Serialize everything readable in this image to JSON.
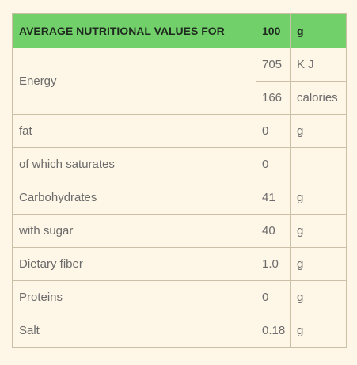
{
  "header": {
    "title": "AVERAGE NUTRITIONAL VALUES FOR",
    "amount": "100",
    "unit": "g"
  },
  "rows": [
    {
      "label": "Energy",
      "values": [
        {
          "amount": "705",
          "unit": "K J"
        },
        {
          "amount": "166",
          "unit": "calories"
        }
      ]
    },
    {
      "label": "fat",
      "values": [
        {
          "amount": "0",
          "unit": "g"
        }
      ]
    },
    {
      "label": "of which saturates",
      "values": [
        {
          "amount": "0"
        }
      ]
    },
    {
      "label": "Carbohydrates",
      "values": [
        {
          "amount": "41",
          "unit": "g"
        }
      ]
    },
    {
      "label": "with sugar",
      "values": [
        {
          "amount": "40",
          "unit": "g"
        }
      ]
    },
    {
      "label": "Dietary fiber",
      "values": [
        {
          "amount": "1.0",
          "unit": "g"
        }
      ]
    },
    {
      "label": "Proteins",
      "values": [
        {
          "amount": "0",
          "unit": "g"
        }
      ]
    },
    {
      "label": "Salt",
      "values": [
        {
          "amount": "0.18",
          "unit": "g"
        }
      ]
    }
  ]
}
